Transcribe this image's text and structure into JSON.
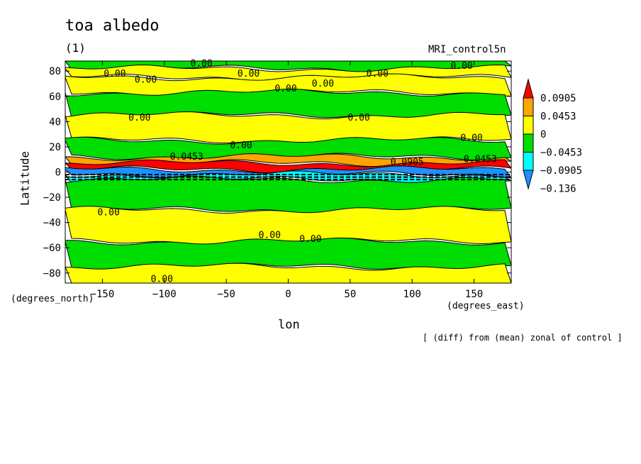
{
  "chart_data": {
    "type": "heatmap",
    "title": "toa albedo",
    "panel_label": "(1)",
    "dataset_label": "MRI_control5n",
    "xlabel": "lon",
    "x_units": "(degrees_east)",
    "ylabel": "Latitude",
    "y_units": "(degrees_north)",
    "note": "[ (diff) from (mean) zonal of control ]",
    "xlim": [
      -180,
      180
    ],
    "ylim": [
      -88,
      88
    ],
    "x_ticks": [
      -150,
      -100,
      -50,
      0,
      50,
      100,
      150
    ],
    "y_ticks": [
      80,
      60,
      40,
      20,
      0,
      -20,
      -40,
      -60,
      -80
    ],
    "colorbar": {
      "levels": [
        "0.0905",
        "0.0453",
        "0",
        "−0.0453",
        "−0.0905",
        "−0.136"
      ],
      "colors": [
        "#ff0000",
        "#ffa500",
        "#ffff00",
        "#00dd00",
        "#00ffff",
        "#1e90ff"
      ],
      "extend": "both"
    },
    "zonal_bands": [
      {
        "lat": [
          82,
          88
        ],
        "fill": "#00dd00"
      },
      {
        "lat": [
          75,
          82
        ],
        "fill": "#ffff00"
      },
      {
        "lat": [
          63,
          75
        ],
        "fill": "#ffff00"
      },
      {
        "lat": [
          45,
          63
        ],
        "fill": "#00dd00"
      },
      {
        "lat": [
          25,
          45
        ],
        "fill": "#ffff00"
      },
      {
        "lat": [
          12,
          25
        ],
        "fill": "#00dd00"
      },
      {
        "lat": [
          7,
          12
        ],
        "fill": "#ffa500"
      },
      {
        "lat": [
          2,
          7
        ],
        "fill": "#ff0000"
      },
      {
        "lat": [
          -2,
          2
        ],
        "fill": "#1e90ff"
      },
      {
        "lat": [
          -6,
          -2
        ],
        "fill": "#00ffff"
      },
      {
        "lat": [
          -30,
          -6
        ],
        "fill": "#00dd00"
      },
      {
        "lat": [
          -55,
          -30
        ],
        "fill": "#ffff00"
      },
      {
        "lat": [
          -75,
          -55
        ],
        "fill": "#00dd00"
      },
      {
        "lat": [
          -88,
          -75
        ],
        "fill": "#ffff00"
      }
    ],
    "contour_labels": [
      {
        "text": "0.00",
        "lon": -70,
        "lat": 86
      },
      {
        "text": "0.00",
        "lon": -140,
        "lat": 78
      },
      {
        "text": "0.00",
        "lon": -115,
        "lat": 73
      },
      {
        "text": "0.00",
        "lon": -32,
        "lat": 78
      },
      {
        "text": "0.00",
        "lon": 72,
        "lat": 78
      },
      {
        "text": "0.00",
        "lon": 140,
        "lat": 84
      },
      {
        "text": "0.00",
        "lon": 28,
        "lat": 70
      },
      {
        "text": "0.00",
        "lon": -2,
        "lat": 66
      },
      {
        "text": "0.00",
        "lon": -120,
        "lat": 43
      },
      {
        "text": "0.00",
        "lon": 57,
        "lat": 43
      },
      {
        "text": "0.00",
        "lon": -38,
        "lat": 21
      },
      {
        "text": "0.00",
        "lon": 148,
        "lat": 27
      },
      {
        "text": "0.0453",
        "lon": -82,
        "lat": 12
      },
      {
        "text": "0.0905",
        "lon": 96,
        "lat": 8
      },
      {
        "text": "0.0453",
        "lon": 155,
        "lat": 10
      },
      {
        "text": "0.00",
        "lon": -145,
        "lat": -32
      },
      {
        "text": "0.00",
        "lon": -15,
        "lat": -50
      },
      {
        "text": "0.00",
        "lon": 18,
        "lat": -53
      },
      {
        "text": "0.00",
        "lon": -102,
        "lat": -85
      }
    ]
  }
}
